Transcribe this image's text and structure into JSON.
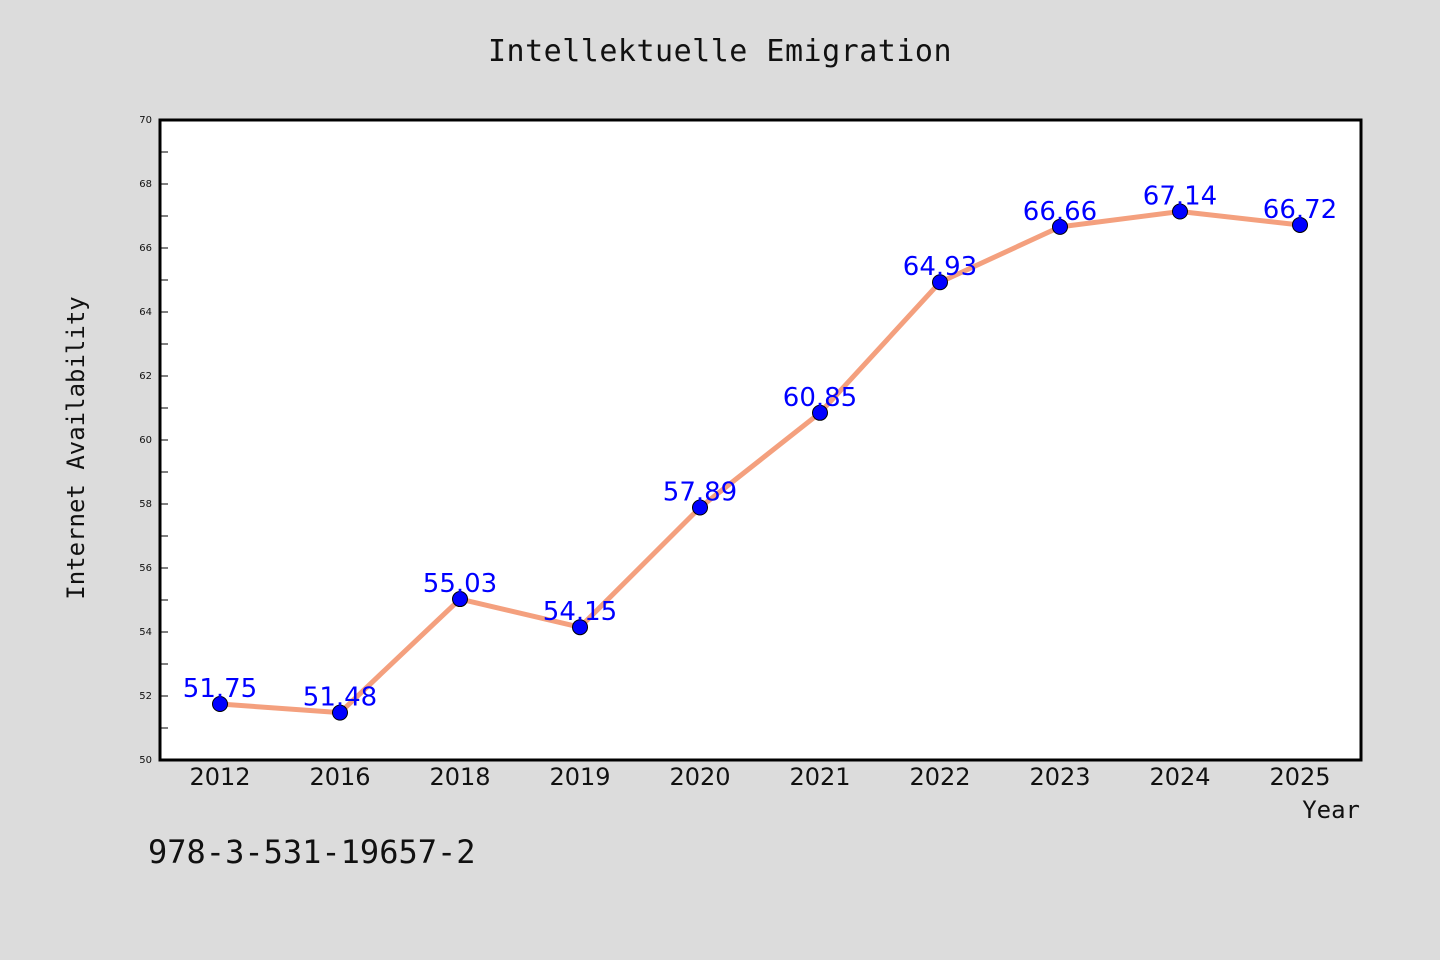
{
  "title": "Intellektuelle Emigration",
  "footer_text": "978-3-531-19657-2",
  "colors": {
    "background": "#dcdcdc",
    "plot_background": "#ffffff",
    "line": "#f4a07e",
    "marker": "#0000ff",
    "data_label": "#0000ff"
  },
  "chart_data": {
    "type": "line",
    "xlabel": "Year",
    "ylabel": "Internet Availability",
    "categories": [
      "2012",
      "2016",
      "2018",
      "2019",
      "2020",
      "2021",
      "2022",
      "2023",
      "2024",
      "2025"
    ],
    "values": [
      51.75,
      51.48,
      55.03,
      54.15,
      57.89,
      60.85,
      64.93,
      66.66,
      67.14,
      66.72
    ],
    "data_labels": [
      "51.75",
      "51.48",
      "55.03",
      "54.15",
      "57.89",
      "60.85",
      "64.93",
      "66.66",
      "67.14",
      "66.72"
    ],
    "ylim": [
      50,
      70
    ],
    "yticks": [
      "50",
      "52",
      "54",
      "56",
      "58",
      "60",
      "62",
      "64",
      "66",
      "68",
      "70"
    ],
    "grid": false,
    "legend": "none"
  }
}
